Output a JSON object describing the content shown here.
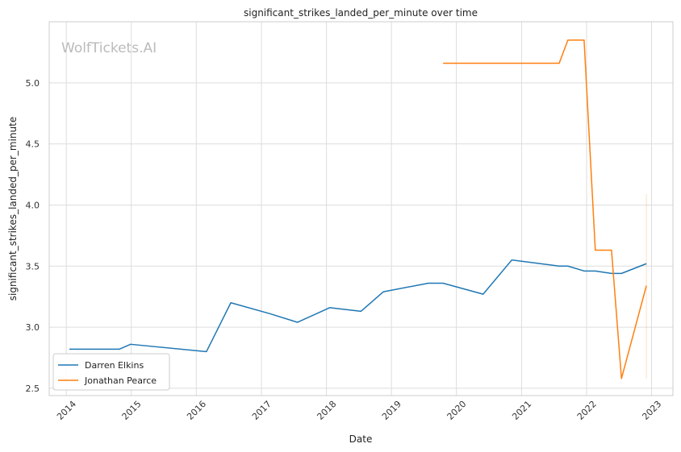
{
  "chart_data": {
    "type": "line",
    "title": "significant_strikes_landed_per_minute over time",
    "xlabel": "Date",
    "ylabel": "significant_strikes_landed_per_minute",
    "watermark": "WolfTickets.AI",
    "xlim": [
      "2013-09-27",
      "2023-05-01"
    ],
    "ylim": [
      2.44,
      5.5
    ],
    "x_ticks": [
      "2014",
      "2015",
      "2016",
      "2017",
      "2018",
      "2019",
      "2020",
      "2021",
      "2022",
      "2023"
    ],
    "y_ticks": [
      "2.5",
      "3.0",
      "3.5",
      "4.0",
      "4.5",
      "5.0"
    ],
    "grid": true,
    "legend_position": "lower-left",
    "series": [
      {
        "name": "Darren Elkins",
        "color": "#1f77b4",
        "points": [
          [
            "2014-01-18",
            2.82
          ],
          [
            "2014-10-25",
            2.82
          ],
          [
            "2014-12-28",
            2.86
          ],
          [
            "2016-02-27",
            2.8
          ],
          [
            "2016-07-13",
            3.2
          ],
          [
            "2017-02-19",
            3.11
          ],
          [
            "2017-07-22",
            3.04
          ],
          [
            "2018-01-20",
            3.16
          ],
          [
            "2018-07-14",
            3.13
          ],
          [
            "2018-11-17",
            3.29
          ],
          [
            "2019-07-27",
            3.36
          ],
          [
            "2019-10-18",
            3.36
          ],
          [
            "2020-05-30",
            3.27
          ],
          [
            "2020-11-07",
            3.55
          ],
          [
            "2021-07-31",
            3.5
          ],
          [
            "2021-09-18",
            3.5
          ],
          [
            "2021-12-18",
            3.46
          ],
          [
            "2022-02-19",
            3.46
          ],
          [
            "2022-05-21",
            3.44
          ],
          [
            "2022-07-16",
            3.44
          ],
          [
            "2022-12-03",
            3.52
          ]
        ]
      },
      {
        "name": "Jonathan Pearce",
        "color": "#ff7f0e",
        "points": [
          [
            "2019-10-18",
            5.16
          ],
          [
            "2021-07-31",
            5.16
          ],
          [
            "2021-09-18",
            5.35
          ],
          [
            "2021-12-18",
            5.35
          ],
          [
            "2022-02-19",
            3.63
          ],
          [
            "2022-05-21",
            3.63
          ],
          [
            "2022-07-16",
            2.58
          ],
          [
            "2022-12-03",
            3.34
          ]
        ]
      }
    ],
    "shaded_band": {
      "date": "2022-12-03",
      "y_range": [
        2.58,
        4.09
      ],
      "color": "#ff7f0e"
    }
  }
}
